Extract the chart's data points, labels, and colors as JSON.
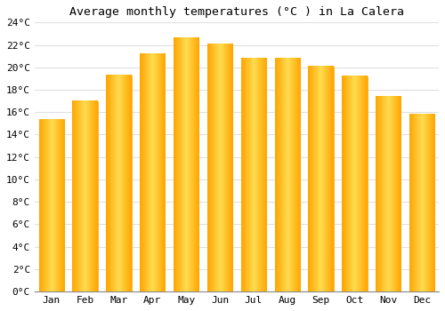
{
  "title": "Average monthly temperatures (°C ) in La Calera",
  "months": [
    "Jan",
    "Feb",
    "Mar",
    "Apr",
    "May",
    "Jun",
    "Jul",
    "Aug",
    "Sep",
    "Oct",
    "Nov",
    "Dec"
  ],
  "values": [
    15.3,
    17.0,
    19.3,
    21.2,
    22.6,
    22.1,
    20.8,
    20.8,
    20.1,
    19.2,
    17.4,
    15.8
  ],
  "bar_color_center": "#FFD966",
  "bar_color_edge": "#FFA500",
  "ylim": [
    0,
    24
  ],
  "ytick_step": 2,
  "background_color": "#ffffff",
  "grid_color": "#e0e0e0",
  "title_fontsize": 9.5,
  "tick_fontsize": 8,
  "font_family": "monospace"
}
